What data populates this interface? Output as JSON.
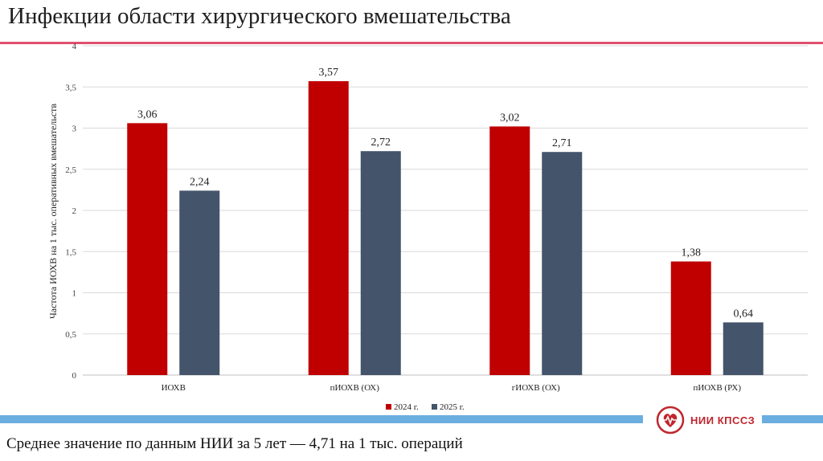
{
  "slide": {
    "title": "Инфекции области хирургического вмешательства",
    "footnote": "Среднее значение по данным НИИ за 5 лет — 4,71 на 1 тыс. операций",
    "brand_name": "НИИ КПССЗ",
    "accent_color": "#e0506b",
    "band_color": "#6aaee0",
    "brand_color": "#c0262d"
  },
  "chart_data": {
    "type": "bar",
    "categories": [
      "ИОХВ",
      "пИОХВ (ОХ)",
      "гИОХВ (ОХ)",
      "пИОХВ (РХ)"
    ],
    "series": [
      {
        "name": "2024 г.",
        "values": [
          3.06,
          3.57,
          3.02,
          1.38
        ],
        "labels": [
          "3,06",
          "3,57",
          "3,02",
          "1,38"
        ],
        "color": "#c00000"
      },
      {
        "name": "2025 г.",
        "values": [
          2.24,
          2.72,
          2.71,
          0.64
        ],
        "labels": [
          "2,24",
          "2,72",
          "2,71",
          "0,64"
        ],
        "color": "#44546a"
      }
    ],
    "ylabel": "Частота ИОХВ на 1 тыс. оперативных вмешательств",
    "ylim": [
      0,
      4
    ],
    "yticks": [
      0,
      0.5,
      1,
      1.5,
      2,
      2.5,
      3,
      3.5,
      4
    ],
    "ytick_labels": [
      "0",
      "0,5",
      "1",
      "1,5",
      "2",
      "2,5",
      "3",
      "3,5",
      "4"
    ],
    "grid": true,
    "legend_position": "bottom"
  }
}
